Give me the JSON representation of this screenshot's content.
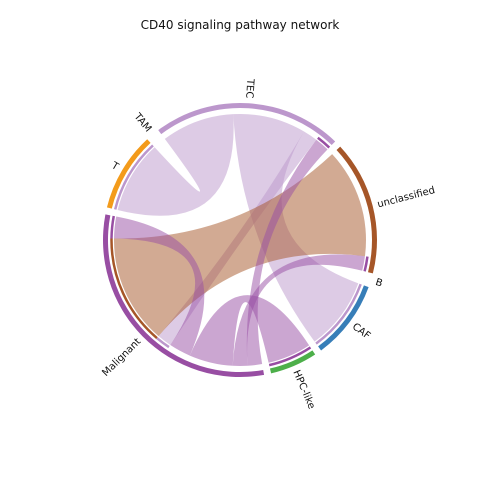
{
  "chart_data": {
    "type": "chord",
    "title": "CD40 signaling pathway network",
    "sectors": [
      {
        "name": "unclassified",
        "color": "#A65628"
      },
      {
        "name": "B",
        "color": "#E41A1C"
      },
      {
        "name": "CAF",
        "color": "#377EB8"
      },
      {
        "name": "HPC-like",
        "color": "#4DAF4A"
      },
      {
        "name": "Malignant",
        "color": "#984EA3"
      },
      {
        "name": "T",
        "color": "#F39B1B"
      },
      {
        "name": "TAM",
        "color": "#F781BF"
      },
      {
        "name": "TEC",
        "color": "#BC97CC"
      }
    ],
    "links": [
      {
        "source": "TEC",
        "target": "T",
        "value": 1.0
      },
      {
        "source": "TEC",
        "target": "CAF",
        "value": 1.0
      },
      {
        "source": "TEC",
        "target": "Malignant",
        "value": 0.2
      },
      {
        "source": "unclassified",
        "target": "Malignant",
        "value": 1.5
      },
      {
        "source": "Malignant",
        "target": "TEC",
        "value": 0.2
      },
      {
        "source": "Malignant",
        "target": "unclassified",
        "value": 0.2
      },
      {
        "source": "Malignant",
        "target": "HPC-like",
        "value": 0.6
      },
      {
        "source": "Malignant",
        "target": "Malignant",
        "value": 0.3
      }
    ]
  }
}
